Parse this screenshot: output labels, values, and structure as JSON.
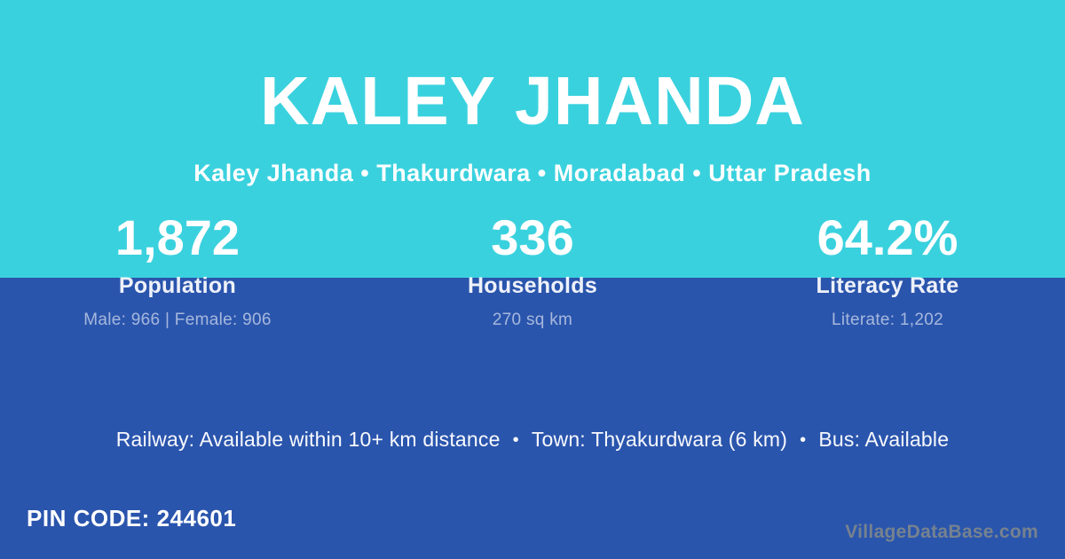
{
  "header": {
    "title": "KALEY JHANDA",
    "breadcrumb": "Kaley Jhanda • Thakurdwara • Moradabad • Uttar Pradesh"
  },
  "stats": [
    {
      "value": "1,872",
      "label": "Population",
      "detail": "Male: 966 | Female: 906"
    },
    {
      "value": "336",
      "label": "Households",
      "detail": "270 sq km"
    },
    {
      "value": "64.2%",
      "label": "Literacy Rate",
      "detail": "Literate: 1,202"
    }
  ],
  "facts": {
    "railway": "Railway: Available within 10+ km distance",
    "town": "Town: Thyakurdwara (6 km)",
    "bus": "Bus: Available",
    "separator": "•"
  },
  "footer": {
    "pin_code": "PIN CODE: 244601",
    "watermark": "VillageDataBase.com"
  },
  "colors": {
    "top_background": "#3AD1DE",
    "bottom_background": "#2A55AD",
    "text_primary": "#FFFFFF",
    "watermark_text": "#76828E"
  }
}
